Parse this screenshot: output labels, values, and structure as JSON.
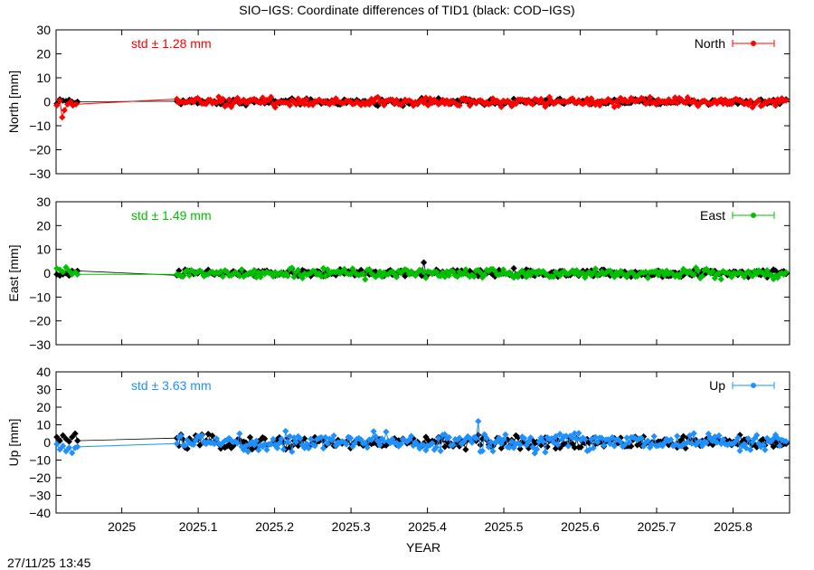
{
  "figure": {
    "title": "SIO−IGS: Coordinate differences of TID1 (black: COD−IGS)",
    "xlabel": "YEAR",
    "timestamp": "27/11/25 13:45"
  },
  "chart_data": [
    {
      "type": "scatter",
      "name": "North",
      "ylabel": "North [mm]",
      "std_label": "std ± 1.28 mm",
      "legend_label": "North",
      "legend_position": "top-right",
      "color": "#ff0000",
      "ref_color": "#000000",
      "xlim": [
        2024.914,
        2025.874
      ],
      "ylim": [
        -30,
        30
      ],
      "yticks": [
        -30,
        -20,
        -10,
        0,
        10,
        20,
        30
      ],
      "ytick_labels": [
        "−30",
        "−20",
        "−10",
        "0",
        "10",
        "20",
        "30"
      ],
      "grid": false,
      "amp": 1.3,
      "ref_amp": 0.9,
      "early_points": [
        [
          2024.915,
          -1.5
        ],
        [
          2024.919,
          0.5
        ],
        [
          2024.922,
          -6.5
        ],
        [
          2024.925,
          -3.5
        ],
        [
          2024.929,
          -1.0
        ],
        [
          2024.933,
          0.0
        ],
        [
          2024.936,
          -1.5
        ],
        [
          2024.94,
          -1.0
        ]
      ],
      "early_ref": [
        [
          2024.915,
          -0.8
        ],
        [
          2024.919,
          1.0
        ],
        [
          2024.923,
          0.5
        ],
        [
          2024.927,
          0.3
        ],
        [
          2024.931,
          0.8
        ],
        [
          2024.935,
          0.0
        ],
        [
          2024.939,
          -0.5
        ],
        [
          2024.942,
          0.0
        ]
      ]
    },
    {
      "type": "scatter",
      "name": "East",
      "ylabel": "East [mm]",
      "std_label": "std ± 1.49 mm",
      "legend_label": "East",
      "legend_position": "top-right",
      "color": "#00c000",
      "ref_color": "#000000",
      "xlim": [
        2024.914,
        2025.874
      ],
      "ylim": [
        -30,
        30
      ],
      "yticks": [
        -30,
        -20,
        -10,
        0,
        10,
        20,
        30
      ],
      "ytick_labels": [
        "−30",
        "−20",
        "−10",
        "0",
        "10",
        "20",
        "30"
      ],
      "grid": false,
      "amp": 1.4,
      "ref_amp": 1.1,
      "early_points": [
        [
          2024.915,
          2.0
        ],
        [
          2024.919,
          1.5
        ],
        [
          2024.923,
          0.5
        ],
        [
          2024.927,
          2.5
        ],
        [
          2024.931,
          1.0
        ],
        [
          2024.935,
          -0.5
        ],
        [
          2024.939,
          0.5
        ],
        [
          2024.942,
          -0.5
        ]
      ],
      "early_ref": [
        [
          2024.915,
          -0.5
        ],
        [
          2024.919,
          -1.0
        ],
        [
          2024.923,
          -0.5
        ],
        [
          2024.927,
          0.0
        ],
        [
          2024.931,
          -1.0
        ],
        [
          2024.935,
          1.0
        ],
        [
          2024.939,
          0.5
        ],
        [
          2024.942,
          1.0
        ]
      ],
      "ref_spike": [
        2025.394,
        4.5
      ]
    },
    {
      "type": "scatter",
      "name": "Up",
      "ylabel": "Up [mm]",
      "std_label": "std ± 3.63 mm",
      "legend_label": "Up",
      "legend_position": "top-right",
      "color": "#1e90ff",
      "ref_color": "#000000",
      "xlim": [
        2024.914,
        2025.874
      ],
      "ylim": [
        -40,
        40
      ],
      "yticks": [
        -40,
        -30,
        -20,
        -10,
        0,
        10,
        20,
        30,
        40
      ],
      "ytick_labels": [
        "−40",
        "−30",
        "−20",
        "−10",
        "0",
        "10",
        "20",
        "30",
        "40"
      ],
      "grid": false,
      "amp": 3.6,
      "ref_amp": 2.6,
      "early_points": [
        [
          2024.915,
          -1.0
        ],
        [
          2024.919,
          -4.0
        ],
        [
          2024.923,
          -2.0
        ],
        [
          2024.927,
          -5.0
        ],
        [
          2024.931,
          -3.0
        ],
        [
          2024.935,
          -6.0
        ],
        [
          2024.939,
          -3.0
        ],
        [
          2024.942,
          -2.5
        ]
      ],
      "early_ref": [
        [
          2024.915,
          3.0
        ],
        [
          2024.919,
          1.0
        ],
        [
          2024.923,
          4.0
        ],
        [
          2024.927,
          2.0
        ],
        [
          2024.931,
          0.5
        ],
        [
          2024.935,
          3.0
        ],
        [
          2024.939,
          5.0
        ],
        [
          2024.942,
          1.0
        ]
      ],
      "highlight": [
        2025.466,
        12.0
      ]
    }
  ],
  "x_axis": {
    "ticks": [
      2025.0,
      2025.1,
      2025.2,
      2025.3,
      2025.4,
      2025.5,
      2025.6,
      2025.7,
      2025.8
    ],
    "tick_labels": [
      "2025",
      "2025.1",
      "2025.2",
      "2025.3",
      "2025.4",
      "2025.5",
      "2025.6",
      "2025.7",
      "2025.8"
    ],
    "data_gap": [
      2024.942,
      2025.072
    ],
    "data_end": 2025.872
  }
}
